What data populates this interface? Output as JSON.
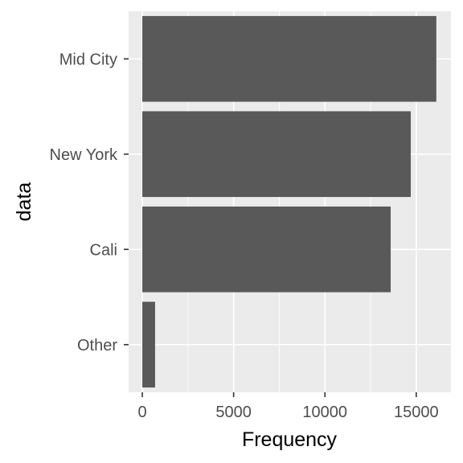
{
  "chart_data": {
    "type": "bar",
    "orientation": "horizontal",
    "categories": [
      "Mid City",
      "New York",
      "Cali",
      "Other"
    ],
    "values": [
      16100,
      14700,
      13600,
      700
    ],
    "xlabel": "Frequency",
    "ylabel": "data",
    "xlim": [
      -750,
      16900
    ],
    "xticks": [
      0,
      5000,
      10000,
      15000
    ],
    "xtick_labels": [
      "0",
      "5000",
      "10000",
      "15000"
    ],
    "grid": true,
    "legend": "none",
    "colors": {
      "bar": "#595959",
      "panel": "#ebebeb",
      "gridline": "#ffffff",
      "tick_text": "#4d4d4d",
      "tick_mark": "#333333"
    }
  }
}
